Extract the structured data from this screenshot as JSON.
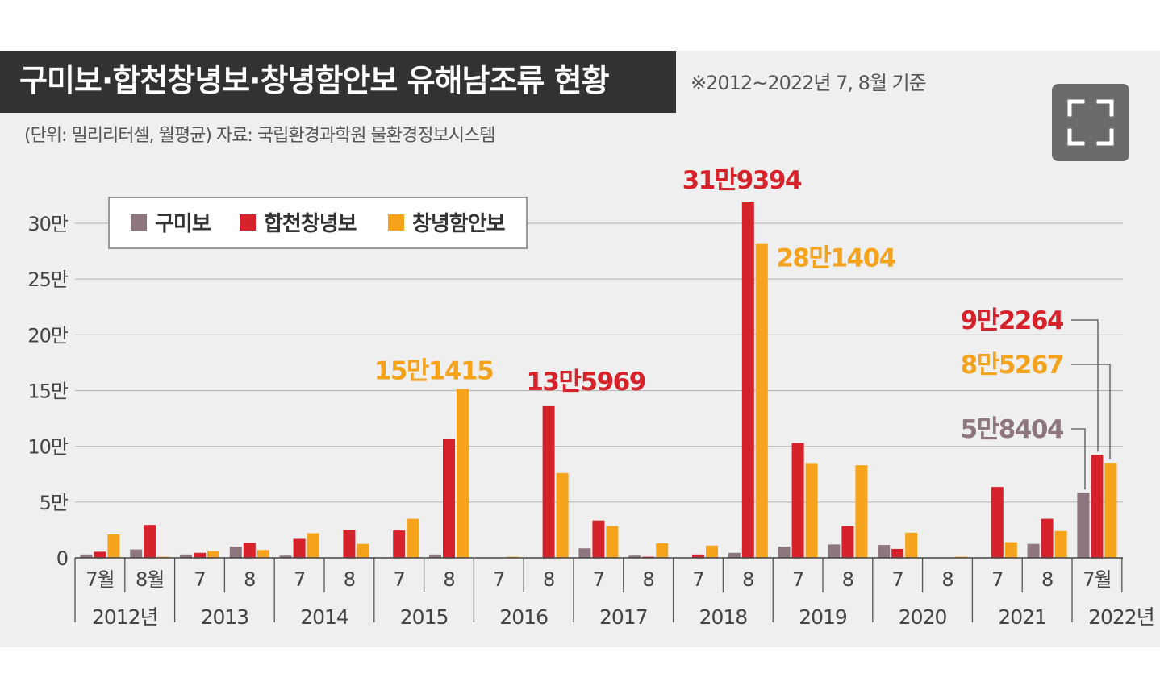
{
  "header": {
    "title": "구미보·합천창녕보·창녕함안보 유해남조류 현황",
    "basis_note": "※2012~2022년 7, 8월 기준",
    "source_note": "(단위: 밀리리터셀, 월평균) 자료: 국립환경과학원 물환경정보시스템"
  },
  "controls": {
    "fullscreen_icon": "fullscreen-icon"
  },
  "colors": {
    "gumi": "#8d767d",
    "hapcheon": "#d6222a",
    "changnyeong": "#f5a21d",
    "label_red": "#d6222a",
    "label_orange": "#f5a21d",
    "label_gray": "#8d767d"
  },
  "chart_data": {
    "type": "bar",
    "ylim": [
      0,
      300000
    ],
    "y_ticks": [
      {
        "value": 0,
        "label": "0"
      },
      {
        "value": 50000,
        "label": "5만"
      },
      {
        "value": 100000,
        "label": "10만"
      },
      {
        "value": 150000,
        "label": "15만"
      },
      {
        "value": 200000,
        "label": "20만"
      },
      {
        "value": 250000,
        "label": "25만"
      },
      {
        "value": 300000,
        "label": "30만"
      }
    ],
    "grid": true,
    "legend_position": "top-left",
    "categories": [
      "2012-07",
      "2012-08",
      "2013-07",
      "2013-08",
      "2014-07",
      "2014-08",
      "2015-07",
      "2015-08",
      "2016-07",
      "2016-08",
      "2017-07",
      "2017-08",
      "2018-07",
      "2018-08",
      "2019-07",
      "2019-08",
      "2020-07",
      "2020-08",
      "2021-07",
      "2021-08",
      "2022-07"
    ],
    "month_labels": [
      "7월",
      "8월",
      "7",
      "8",
      "7",
      "8",
      "7",
      "8",
      "7",
      "8",
      "7",
      "8",
      "7",
      "8",
      "7",
      "8",
      "7",
      "8",
      "7",
      "8",
      "7월"
    ],
    "year_groups": [
      {
        "label": "2012년",
        "months": 2
      },
      {
        "label": "2013",
        "months": 2
      },
      {
        "label": "2014",
        "months": 2
      },
      {
        "label": "2015",
        "months": 2
      },
      {
        "label": "2016",
        "months": 2
      },
      {
        "label": "2017",
        "months": 2
      },
      {
        "label": "2018",
        "months": 2
      },
      {
        "label": "2019",
        "months": 2
      },
      {
        "label": "2020",
        "months": 2
      },
      {
        "label": "2021",
        "months": 2
      },
      {
        "label": "2022년",
        "months": 1
      }
    ],
    "series": [
      {
        "name": "구미보",
        "color": "#8d767d",
        "values": [
          3000,
          7500,
          3000,
          10000,
          2000,
          0,
          0,
          3000,
          0,
          0,
          8500,
          2000,
          0,
          4500,
          10000,
          12000,
          11500,
          0,
          0,
          12500,
          58404
        ]
      },
      {
        "name": "합천창녕보",
        "color": "#d6222a",
        "values": [
          5500,
          29500,
          4500,
          13500,
          17000,
          25000,
          24500,
          107000,
          0,
          135969,
          33500,
          1000,
          3000,
          319394,
          103000,
          28500,
          8000,
          0,
          63500,
          35000,
          92264
        ]
      },
      {
        "name": "창녕함안보",
        "color": "#f5a21d",
        "values": [
          21000,
          1000,
          6000,
          7000,
          22000,
          12500,
          35000,
          151415,
          1000,
          76000,
          28500,
          13000,
          11000,
          281404,
          85000,
          83000,
          22500,
          1000,
          14000,
          24000,
          85267
        ]
      }
    ],
    "annotations": [
      {
        "text": "15만1415",
        "category": "2015-08",
        "series": "창녕함안보",
        "color": "#f5a21d"
      },
      {
        "text": "13만5969",
        "category": "2016-08",
        "series": "합천창녕보",
        "color": "#d6222a"
      },
      {
        "text": "31만9394",
        "category": "2018-08",
        "series": "합천창녕보",
        "color": "#d6222a"
      },
      {
        "text": "28만1404",
        "category": "2018-08",
        "series": "창녕함안보",
        "color": "#f5a21d"
      },
      {
        "text": "9만2264",
        "category": "2022-07",
        "series": "합천창녕보",
        "color": "#d6222a"
      },
      {
        "text": "8만5267",
        "category": "2022-07",
        "series": "창녕함안보",
        "color": "#f5a21d"
      },
      {
        "text": "5만8404",
        "category": "2022-07",
        "series": "구미보",
        "color": "#8d767d"
      }
    ]
  }
}
